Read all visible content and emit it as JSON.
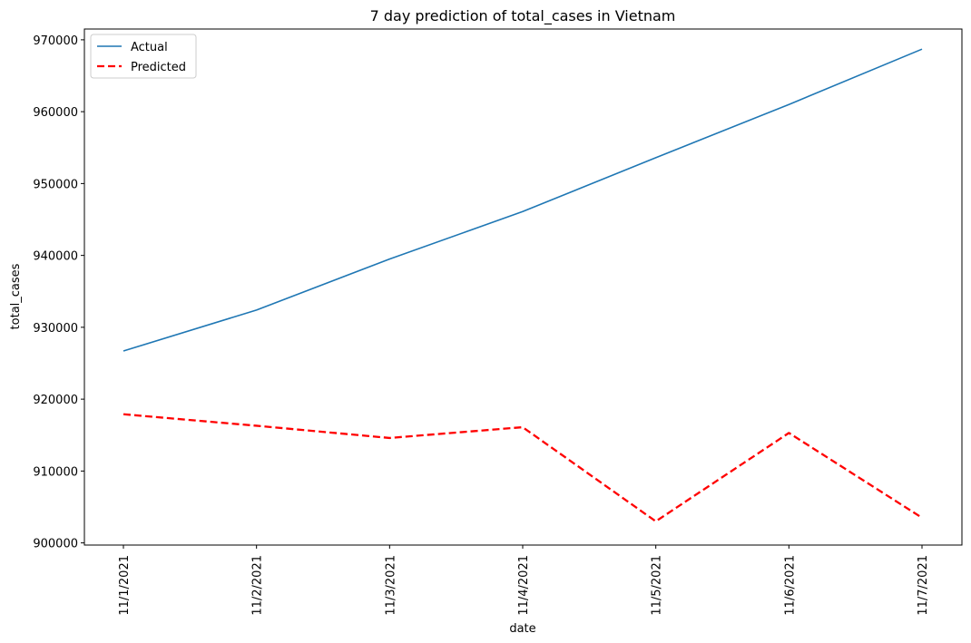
{
  "chart_data": {
    "type": "line",
    "title": "7 day prediction of total_cases in Vietnam",
    "xlabel": "date",
    "ylabel": "total_cases",
    "categories": [
      "11/1/2021",
      "11/2/2021",
      "11/3/2021",
      "11/4/2021",
      "11/5/2021",
      "11/6/2021",
      "11/7/2021"
    ],
    "ylim": [
      899700,
      971500
    ],
    "yticks": [
      900000,
      910000,
      920000,
      930000,
      940000,
      950000,
      960000,
      970000
    ],
    "ytick_labels": [
      "900000",
      "910000",
      "920000",
      "930000",
      "940000",
      "950000",
      "960000",
      "970000"
    ],
    "grid": false,
    "legend_position": "top-left",
    "series": [
      {
        "name": "Actual",
        "color": "#1f77b4",
        "style": "solid",
        "values": [
          926700,
          932400,
          939500,
          946100,
          953600,
          961000,
          968700
        ]
      },
      {
        "name": "Predicted",
        "color": "#ff0000",
        "style": "dashed",
        "values": [
          917900,
          916300,
          914600,
          916100,
          903000,
          915300,
          903500
        ]
      }
    ]
  }
}
